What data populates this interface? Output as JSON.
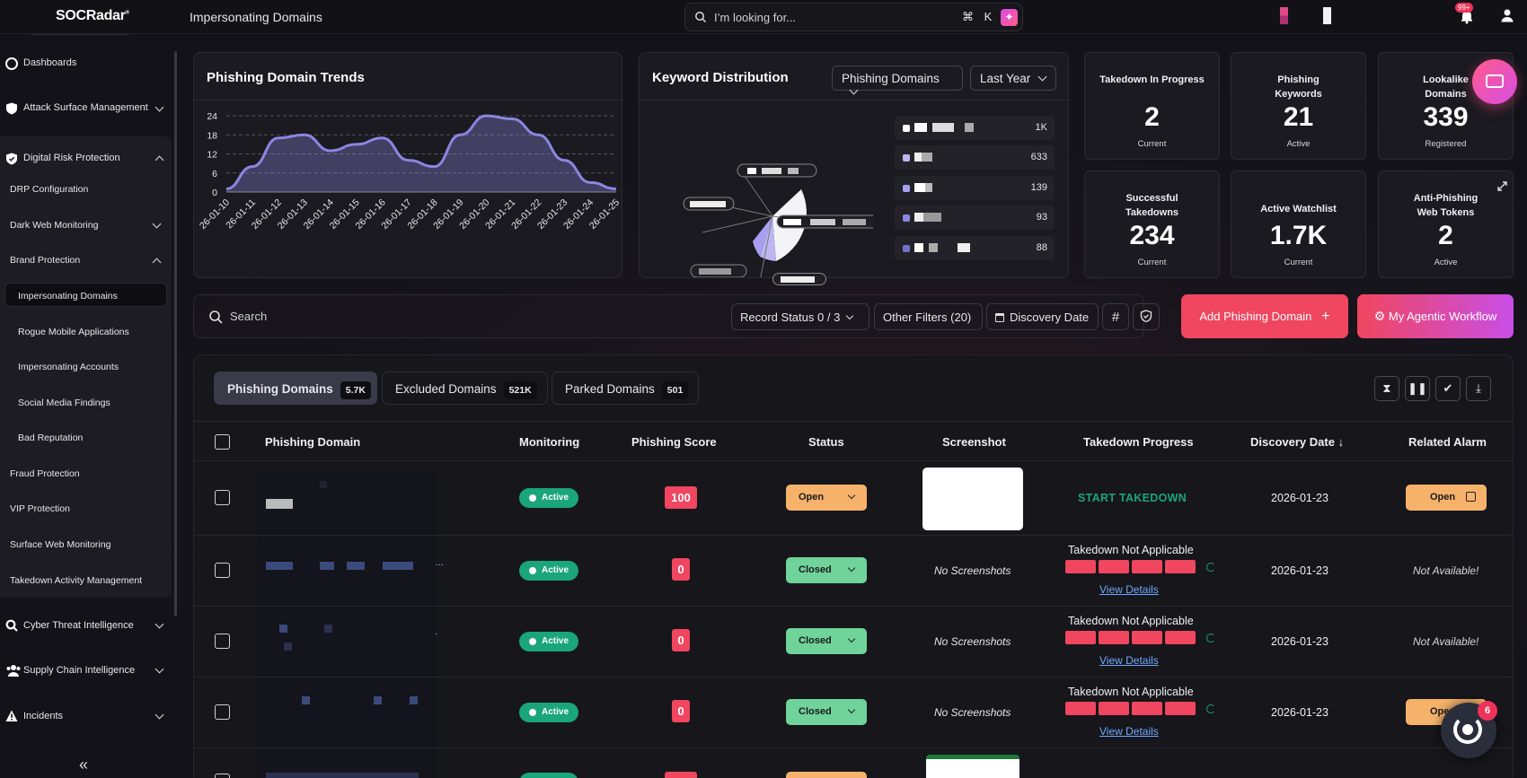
{
  "header": {
    "logo": "SOCRadar",
    "logo_mark": "®",
    "page_title": "Impersonating Domains",
    "search_placeholder": "I’m looking for...",
    "shortcut": "⌘ K",
    "notifications_badge": "99+"
  },
  "sidebar": {
    "items": [
      {
        "label": "Dashboards",
        "icon": "dashboard-icon"
      },
      {
        "label": "Attack Surface Management",
        "icon": "shield-icon"
      },
      {
        "label": "Digital Risk Protection",
        "icon": "shield-check-icon"
      },
      {
        "label": "DRP Configuration"
      },
      {
        "label": "Dark Web Monitoring"
      },
      {
        "label": "Brand Protection"
      },
      {
        "label": "Impersonating Domains"
      },
      {
        "label": "Rogue Mobile Applications"
      },
      {
        "label": "Impersonating Accounts"
      },
      {
        "label": "Social Media Findings"
      },
      {
        "label": "Bad Reputation"
      },
      {
        "label": "Fraud Protection"
      },
      {
        "label": "VIP Protection"
      },
      {
        "label": "Surface Web Monitoring"
      },
      {
        "label": "Takedown Activity Management"
      },
      {
        "label": "Cyber Threat Intelligence",
        "icon": "search-icon"
      },
      {
        "label": "Supply Chain Intelligence",
        "icon": "users-icon"
      },
      {
        "label": "Incidents",
        "icon": "warning-icon"
      }
    ],
    "collapse_glyph": "«"
  },
  "trends": {
    "title": "Phishing Domain Trends"
  },
  "chart_data": {
    "type": "area",
    "title": "Phishing Domain Trends",
    "x": [
      "26-01-10",
      "26-01-11",
      "26-01-12",
      "26-01-13",
      "26-01-14",
      "26-01-15",
      "26-01-16",
      "26-01-17",
      "26-01-18",
      "26-01-19",
      "26-01-20",
      "26-01-21",
      "26-01-22",
      "26-01-23",
      "26-01-24",
      "26-01-25"
    ],
    "series": [
      {
        "values": [
          1,
          8,
          17,
          18,
          13,
          15,
          17,
          10,
          8,
          18,
          24,
          23,
          18,
          10,
          3,
          1
        ]
      }
    ],
    "y_ticks": [
      0,
      6,
      12,
      18,
      24
    ],
    "ylim": [
      0,
      24
    ],
    "grid": true,
    "color": "#8b86e0"
  },
  "keyword_distribution": {
    "title": "Keyword Distribution",
    "filter_type": "Phishing Domains",
    "filter_range": "Last Year",
    "values": [
      "1K",
      "633",
      "139",
      "93",
      "88"
    ]
  },
  "stats": [
    {
      "title": "Takedown In Progress",
      "value": "2",
      "sub": "Current"
    },
    {
      "title": "Phishing Keywords",
      "value": "21",
      "sub": "Active"
    },
    {
      "title": "Lookalike Domains",
      "value": "339",
      "sub": "Registered"
    },
    {
      "title": "Successful Takedowns",
      "value": "234",
      "sub": "Current"
    },
    {
      "title": "Active Watchlist",
      "value": "1.7K",
      "sub": "Current"
    },
    {
      "title": "Anti-Phishing Web Tokens",
      "value": "2",
      "sub": "Active"
    }
  ],
  "filters": {
    "search_placeholder": "Search",
    "record_status": "Record Status",
    "record_status_count": "0 / 3",
    "other_filters": "Other Filters",
    "other_filters_count": "(20)",
    "discovery_date": "Discovery Date",
    "hash_glyph": "#"
  },
  "actions": {
    "add": "Add Phishing Domain",
    "add_glyph": "+",
    "agentic": "My Agentic Workflow"
  },
  "tabs": [
    {
      "label": "Phishing Domains",
      "count": "5.7K"
    },
    {
      "label": "Excluded Domains",
      "count": "521K"
    },
    {
      "label": "Parked Domains",
      "count": "501"
    }
  ],
  "table": {
    "columns": [
      "Phishing Domain",
      "Monitoring",
      "Phishing Score",
      "Status",
      "Screenshot",
      "Takedown Progress",
      "Discovery Date",
      "Related Alarm"
    ],
    "sort_glyph": "↓",
    "rows": [
      {
        "domain_suffix": "",
        "monitoring": "Active",
        "score": "100",
        "status": "Open",
        "screenshot": "",
        "takedown": "START TAKEDOWN",
        "date": "2026-01-23",
        "alarm": "Open"
      },
      {
        "domain_suffix": "...",
        "monitoring": "Active",
        "score": "0",
        "status": "Closed",
        "screenshot": "No Screenshots",
        "takedown": "Takedown Not Applicable",
        "takedown_link": "View Details",
        "date": "2026-01-23",
        "alarm": "Not Available!"
      },
      {
        "domain_suffix": ".",
        "monitoring": "Active",
        "score": "0",
        "status": "Closed",
        "screenshot": "No Screenshots",
        "takedown": "Takedown Not Applicable",
        "takedown_link": "View Details",
        "date": "2026-01-23",
        "alarm": "Not Available!"
      },
      {
        "domain_suffix": "",
        "monitoring": "Active",
        "score": "0",
        "status": "Closed",
        "screenshot": "No Screenshots",
        "takedown": "Takedown Not Applicable",
        "takedown_link": "View Details",
        "date": "2026-01-23",
        "alarm": "Open"
      }
    ]
  },
  "chat_badge": "6"
}
